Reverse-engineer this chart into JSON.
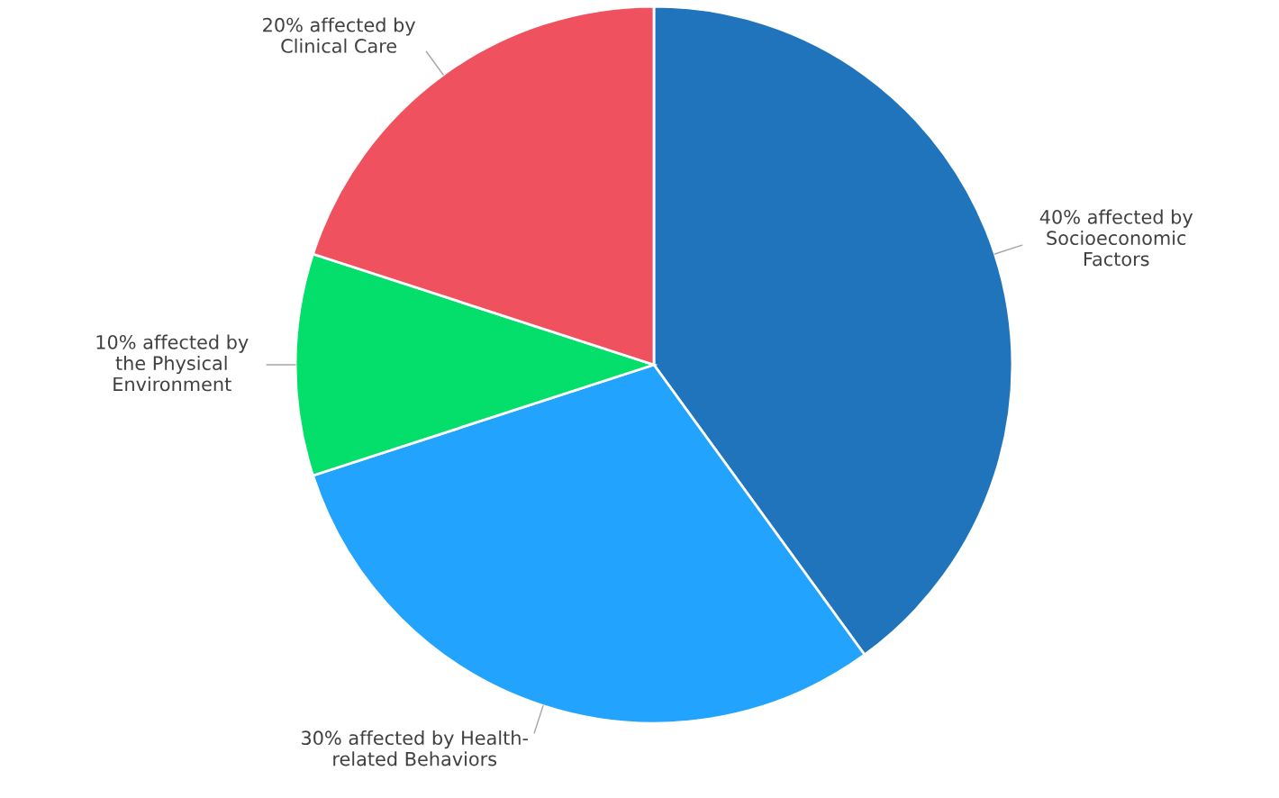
{
  "chart_data": {
    "type": "pie",
    "categories": [
      "40% affected by\nSocioeconomic\nFactors",
      "30% affected by Health-\nrelated Behaviors",
      "10% affected by\nthe Physical\nEnvironment",
      "20% affected by\nClinical Care"
    ],
    "values": [
      40,
      30,
      10,
      20
    ],
    "colors": [
      "#1f74bb",
      "#21a3fe",
      "#03df6a",
      "#f0515e"
    ],
    "legend": false
  }
}
